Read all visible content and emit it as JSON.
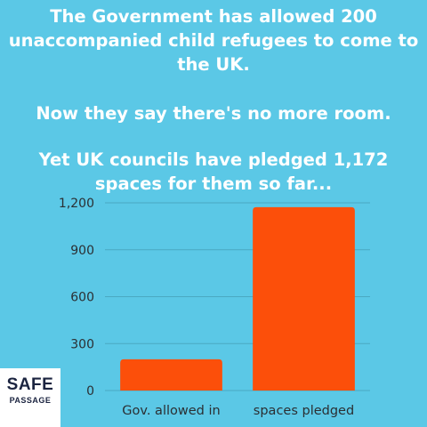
{
  "headline": {
    "line1": "The Government has allowed 200 unaccompanied child refugees to come to the UK.",
    "line2": "Now they say there's no more room.",
    "line3": "Yet UK councils have pledged 1,172 spaces for them so far..."
  },
  "logo": {
    "top": "SAFE",
    "bottom": "PASSAGE"
  },
  "colors": {
    "background": "#5bc8e6",
    "bar": "#fc4f0a",
    "grid": "#4aa8c2",
    "text": "#ffffff"
  },
  "chart_data": {
    "type": "bar",
    "categories": [
      "Gov. allowed in",
      "spaces pledged"
    ],
    "values": [
      200,
      1172
    ],
    "yticks": [
      0,
      300,
      600,
      900,
      1200
    ],
    "ytick_labels": [
      "0",
      "300",
      "600",
      "900",
      "1,200"
    ],
    "ylim": [
      0,
      1200
    ],
    "title": "",
    "xlabel": "",
    "ylabel": ""
  }
}
